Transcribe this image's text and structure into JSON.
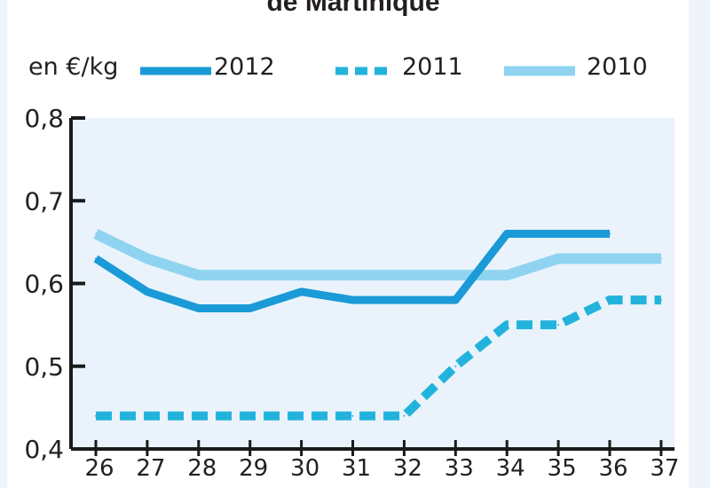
{
  "chart_data": {
    "type": "line",
    "title": "de Martinique",
    "ylabel": "en €/kg",
    "xlabel": "",
    "categories": [
      "26",
      "27",
      "28",
      "29",
      "30",
      "31",
      "32",
      "33",
      "34",
      "35",
      "36",
      "37"
    ],
    "ylim": [
      0.4,
      0.8
    ],
    "yticks": [
      "0,4",
      "0,5",
      "0,6",
      "0,7",
      "0,8"
    ],
    "series": [
      {
        "name": "2012",
        "color": "#1a9ad6",
        "style": "solid",
        "values": [
          0.63,
          0.59,
          0.57,
          0.57,
          0.59,
          0.58,
          0.58,
          0.58,
          0.66,
          0.66,
          0.66,
          null
        ]
      },
      {
        "name": "2011",
        "color": "#22b3dc",
        "style": "dashed",
        "values": [
          0.44,
          0.44,
          0.44,
          0.44,
          0.44,
          0.44,
          0.44,
          0.5,
          0.55,
          0.55,
          0.58,
          0.58
        ]
      },
      {
        "name": "2010",
        "color": "#8fd3f0",
        "style": "solid",
        "values": [
          0.66,
          0.63,
          0.61,
          0.61,
          0.61,
          0.61,
          0.61,
          0.61,
          0.61,
          0.63,
          0.63,
          0.63
        ]
      }
    ],
    "grid": false,
    "legend_position": "top"
  }
}
